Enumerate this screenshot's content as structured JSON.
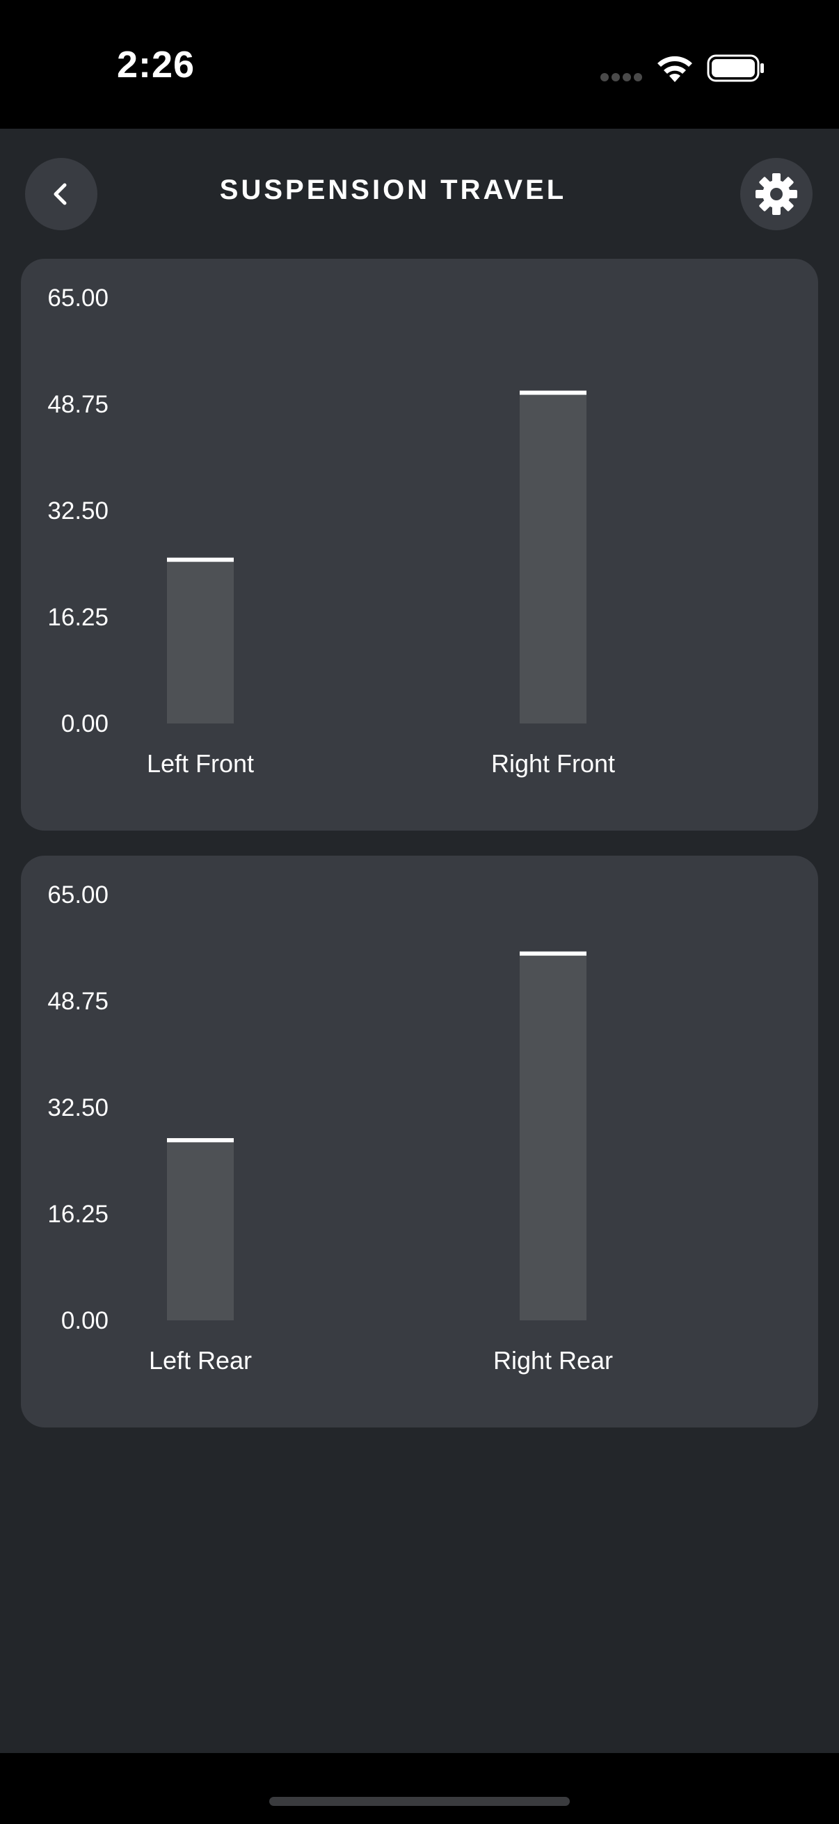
{
  "status_bar": {
    "time": "2:26"
  },
  "header": {
    "title": "SUSPENSION TRAVEL",
    "back_icon": "chevron-left-icon",
    "settings_icon": "gear-icon"
  },
  "colors": {
    "background": "#23262a",
    "card": "#393c42",
    "bar": "#4e5155",
    "marker": "#ffffff"
  },
  "chart_data": [
    {
      "type": "bar",
      "categories": [
        "Left Front",
        "Right Front"
      ],
      "values": [
        25.0,
        50.5
      ],
      "ylim": [
        0,
        65
      ],
      "yticks": [
        "65.00",
        "48.75",
        "32.50",
        "16.25",
        "0.00"
      ],
      "title": "",
      "xlabel": "",
      "ylabel": "",
      "grid": false
    },
    {
      "type": "bar",
      "categories": [
        "Left Rear",
        "Right Rear"
      ],
      "values": [
        27.5,
        56.0
      ],
      "ylim": [
        0,
        65
      ],
      "yticks": [
        "65.00",
        "48.75",
        "32.50",
        "16.25",
        "0.00"
      ],
      "title": "",
      "xlabel": "",
      "ylabel": "",
      "grid": false
    }
  ]
}
